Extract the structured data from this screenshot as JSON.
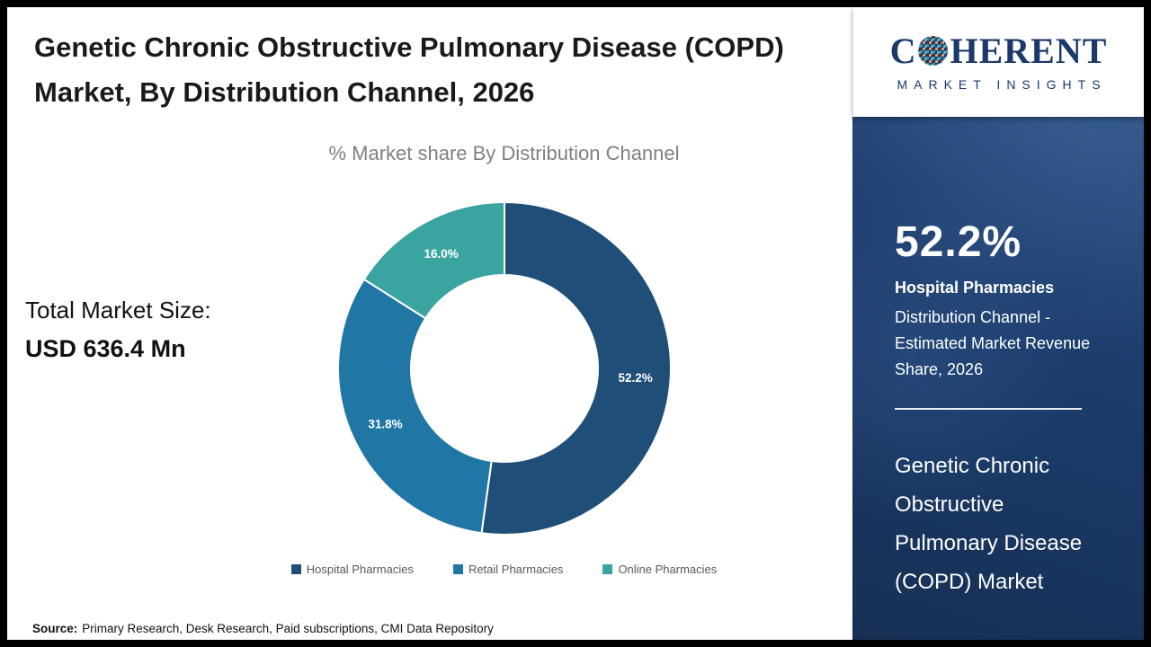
{
  "page": {
    "title": "Genetic Chronic Obstructive Pulmonary Disease (COPD) Market, By Distribution Channel, 2026"
  },
  "chart_data": {
    "type": "pie",
    "subtype": "donut",
    "title": "% Market share By Distribution Channel",
    "categories": [
      "Hospital Pharmacies",
      "Retail Pharmacies",
      "Online Pharmacies"
    ],
    "values": [
      52.2,
      31.8,
      16.0
    ],
    "labels": [
      "52.2%",
      "31.8%",
      "16.0%"
    ],
    "colors": [
      "#1F4E79",
      "#2077A6",
      "#3AA5A0"
    ],
    "units": "percent",
    "legend_position": "bottom",
    "start_angle_deg": 0
  },
  "market_size": {
    "label": "Total Market Size:",
    "value": "USD 636.4 Mn"
  },
  "source": {
    "label": "Source:",
    "text": "Primary Research, Desk Research, Paid subscriptions, CMI Data Repository"
  },
  "sidebar": {
    "logo": {
      "left": "C",
      "right": "HERENT",
      "tagline": "MARKET INSIGHTS"
    },
    "stat_value": "52.2%",
    "stat_label": "Hospital Pharmacies",
    "stat_desc": "Distribution Channel - Estimated Market Revenue Share, 2026",
    "report_title": "Genetic Chronic Obstructive Pulmonary Disease (COPD) Market"
  }
}
